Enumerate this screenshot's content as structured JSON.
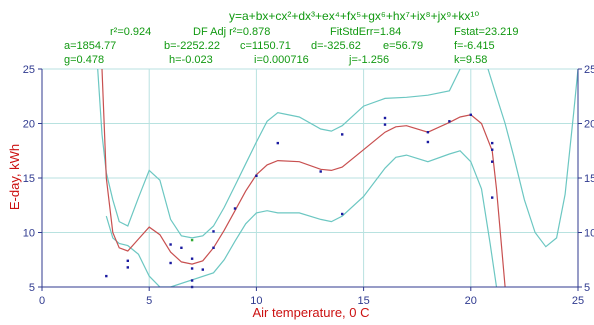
{
  "chart_data": {
    "type": "scatter",
    "equation": "y=a+bx+cx²+dx³+ex⁴+fx⁵+gx⁶+hx⁷+ix⁸+jx⁹+kx¹⁰",
    "stats": {
      "r2": "r²=0.924",
      "adj_r2": "DF Adj r²=0.878",
      "fit_std_err": "FitStdErr=1.84",
      "fstat": "Fstat=23.219"
    },
    "params_row1": [
      "a=1854.77",
      "b=-2252.22",
      "c=1150.71",
      "d=-325.62",
      "e=56.79",
      "f=-6.415"
    ],
    "params_row2": [
      "g=0.478",
      "h=-0.023",
      "i=0.000716",
      "j=-1.256",
      "k=9.58"
    ],
    "xlabel": "Air temperature, 0 C",
    "ylabel": "E-day, kWh",
    "xlim": [
      0,
      25
    ],
    "ylim": [
      5,
      25
    ],
    "x_ticks": [
      0,
      5,
      10,
      15,
      20,
      25
    ],
    "y_ticks": [
      5,
      10,
      15,
      20,
      25
    ],
    "grid": true,
    "colors": {
      "points": "#1a1aa0",
      "green_points": "#33aa33",
      "fit": "#c85050",
      "band": "#6cc7c2",
      "grid": "#b8e2e0",
      "axis": "#2f3a8f",
      "label": "#cc1111",
      "header": "#119911"
    },
    "series": [
      {
        "values": [
          [
            3.0,
            6.0
          ],
          [
            4.0,
            6.8
          ],
          [
            4.0,
            7.4
          ],
          [
            6.0,
            7.2
          ],
          [
            6.0,
            8.9
          ],
          [
            6.5,
            8.6
          ],
          [
            7.0,
            5.0
          ],
          [
            7.0,
            5.6
          ],
          [
            7.0,
            6.7
          ],
          [
            7.0,
            7.6
          ],
          [
            7.5,
            6.6
          ],
          [
            8.0,
            8.6
          ],
          [
            8.0,
            10.1
          ],
          [
            9.0,
            12.2
          ],
          [
            10.0,
            15.2
          ],
          [
            11.0,
            18.2
          ],
          [
            13.0,
            15.6
          ],
          [
            14.0,
            11.7
          ],
          [
            14.0,
            19.0
          ],
          [
            16.0,
            20.5
          ],
          [
            16.0,
            19.9
          ],
          [
            18.0,
            18.3
          ],
          [
            18.0,
            19.2
          ],
          [
            19.0,
            20.2
          ],
          [
            20.0,
            20.8
          ],
          [
            21.0,
            17.6
          ],
          [
            21.0,
            18.2
          ],
          [
            21.0,
            16.5
          ],
          [
            21.0,
            13.2
          ]
        ]
      },
      {
        "values": [
          [
            7.0,
            9.3
          ]
        ]
      }
    ],
    "fit_curve": [
      [
        2.8,
        25.0
      ],
      [
        3.0,
        15.0
      ],
      [
        3.3,
        10.0
      ],
      [
        3.6,
        8.6
      ],
      [
        4.0,
        8.3
      ],
      [
        4.5,
        9.4
      ],
      [
        5.0,
        10.5
      ],
      [
        5.5,
        9.8
      ],
      [
        6.0,
        8.2
      ],
      [
        6.5,
        7.3
      ],
      [
        7.0,
        7.1
      ],
      [
        7.5,
        7.4
      ],
      [
        8.0,
        8.6
      ],
      [
        8.5,
        10.2
      ],
      [
        9.0,
        12.0
      ],
      [
        9.5,
        13.8
      ],
      [
        10.0,
        15.3
      ],
      [
        10.5,
        16.2
      ],
      [
        11.0,
        16.6
      ],
      [
        12.0,
        16.5
      ],
      [
        13.0,
        15.8
      ],
      [
        13.5,
        15.7
      ],
      [
        14.0,
        16.0
      ],
      [
        15.0,
        17.6
      ],
      [
        16.0,
        19.2
      ],
      [
        16.5,
        19.7
      ],
      [
        17.0,
        19.8
      ],
      [
        18.0,
        19.2
      ],
      [
        19.0,
        20.1
      ],
      [
        19.5,
        20.6
      ],
      [
        20.0,
        20.8
      ],
      [
        20.5,
        20.0
      ],
      [
        21.0,
        17.5
      ],
      [
        21.2,
        14.0
      ],
      [
        21.4,
        9.5
      ],
      [
        21.6,
        5.0
      ]
    ],
    "confidence_upper": [
      [
        2.6,
        25.0
      ],
      [
        2.8,
        19.0
      ],
      [
        3.0,
        15.5
      ],
      [
        3.3,
        13.0
      ],
      [
        3.6,
        11.0
      ],
      [
        4.0,
        10.6
      ],
      [
        4.5,
        13.2
      ],
      [
        5.0,
        15.7
      ],
      [
        5.5,
        14.8
      ],
      [
        6.0,
        11.2
      ],
      [
        6.5,
        9.7
      ],
      [
        7.0,
        9.5
      ],
      [
        7.5,
        9.7
      ],
      [
        8.0,
        10.6
      ],
      [
        8.5,
        12.3
      ],
      [
        9.0,
        14.3
      ],
      [
        9.5,
        16.3
      ],
      [
        10.0,
        18.3
      ],
      [
        10.5,
        20.2
      ],
      [
        11.0,
        21.0
      ],
      [
        12.0,
        20.6
      ],
      [
        13.0,
        19.5
      ],
      [
        13.5,
        19.3
      ],
      [
        14.0,
        19.8
      ],
      [
        15.0,
        21.6
      ],
      [
        16.0,
        22.3
      ],
      [
        17.0,
        22.4
      ],
      [
        18.0,
        22.6
      ],
      [
        19.0,
        23.0
      ],
      [
        19.5,
        25.0
      ]
    ],
    "confidence_upper_right": [
      [
        20.8,
        25.0
      ],
      [
        21.2,
        22.5
      ],
      [
        21.6,
        20.0
      ],
      [
        22.0,
        17.0
      ],
      [
        22.5,
        13.0
      ],
      [
        23.0,
        10.0
      ],
      [
        23.5,
        8.7
      ],
      [
        24.0,
        9.5
      ],
      [
        24.4,
        13.5
      ],
      [
        24.8,
        21.0
      ],
      [
        25.0,
        25.0
      ]
    ],
    "confidence_lower": [
      [
        3.0,
        11.5
      ],
      [
        3.3,
        9.5
      ],
      [
        3.6,
        9.0
      ],
      [
        4.0,
        8.8
      ],
      [
        4.5,
        8.0
      ],
      [
        5.0,
        6.0
      ],
      [
        5.5,
        5.0
      ],
      [
        6.0,
        5.0
      ],
      [
        8.0,
        6.3
      ],
      [
        8.5,
        7.5
      ],
      [
        9.0,
        9.2
      ],
      [
        9.5,
        10.8
      ],
      [
        10.0,
        11.8
      ],
      [
        10.5,
        12.0
      ],
      [
        11.0,
        11.8
      ],
      [
        12.0,
        11.8
      ],
      [
        13.0,
        11.2
      ],
      [
        13.5,
        11.0
      ],
      [
        14.0,
        11.5
      ],
      [
        15.0,
        13.3
      ],
      [
        16.0,
        15.9
      ],
      [
        16.5,
        16.9
      ],
      [
        17.0,
        17.1
      ],
      [
        18.0,
        16.5
      ],
      [
        19.0,
        17.2
      ],
      [
        19.5,
        17.5
      ],
      [
        20.0,
        16.5
      ],
      [
        20.5,
        14.0
      ],
      [
        20.9,
        9.0
      ],
      [
        21.2,
        5.0
      ]
    ]
  }
}
